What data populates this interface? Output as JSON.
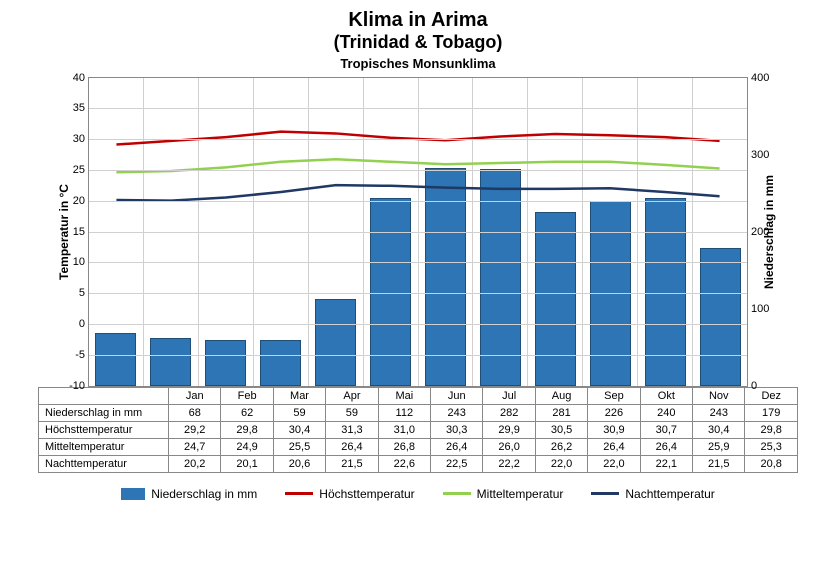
{
  "title": "Klima in Arima",
  "subtitle": "(Trinidad & Tobago)",
  "subsub": "Tropisches Monsunklima",
  "y_left_label": "Temperatur in °C",
  "y_right_label": "Niederschlag in mm",
  "months": [
    "Jan",
    "Feb",
    "Mar",
    "Apr",
    "Mai",
    "Jun",
    "Jul",
    "Aug",
    "Sep",
    "Okt",
    "Nov",
    "Dez"
  ],
  "y_left": {
    "min": -10,
    "max": 40,
    "step": 5
  },
  "y_right": {
    "min": 0,
    "max": 400,
    "step": 100
  },
  "grid_color": "#d0d0d0",
  "bar_fill": "#2e75b6",
  "bar_border": "#1f4e79",
  "series": {
    "niederschlag": {
      "label": "Niederschlag in mm",
      "axis": "right",
      "type": "bar",
      "color": "#2e75b6",
      "values": [
        68,
        62,
        59,
        59,
        112,
        243,
        282,
        281,
        226,
        240,
        243,
        179
      ]
    },
    "hoechst": {
      "label": "Höchsttemperatur",
      "axis": "left",
      "type": "line",
      "color": "#c00000",
      "values": [
        29.2,
        29.8,
        30.4,
        31.3,
        31.0,
        30.3,
        29.9,
        30.5,
        30.9,
        30.7,
        30.4,
        29.8
      ]
    },
    "mittel": {
      "label": "Mitteltemperatur",
      "axis": "left",
      "type": "line",
      "color": "#92d050",
      "values": [
        24.7,
        24.9,
        25.5,
        26.4,
        26.8,
        26.4,
        26.0,
        26.2,
        26.4,
        26.4,
        25.9,
        25.3
      ]
    },
    "nacht": {
      "label": "Nachttemperatur",
      "axis": "left",
      "type": "line",
      "color": "#1f3864",
      "values": [
        20.2,
        20.1,
        20.6,
        21.5,
        22.6,
        22.5,
        22.2,
        22.0,
        22.0,
        22.1,
        21.5,
        20.8
      ]
    }
  },
  "table_rows": [
    {
      "label": "Niederschlag in mm",
      "key": "niederschlag",
      "decimals": 0
    },
    {
      "label": "Höchsttemperatur",
      "key": "hoechst",
      "decimals": 1
    },
    {
      "label": "Mitteltemperatur",
      "key": "mittel",
      "decimals": 1
    },
    {
      "label": "Nachttemperatur",
      "key": "nacht",
      "decimals": 1
    }
  ],
  "legend": [
    {
      "key": "niederschlag",
      "type": "bar"
    },
    {
      "key": "hoechst",
      "type": "line"
    },
    {
      "key": "mittel",
      "type": "line"
    },
    {
      "key": "nacht",
      "type": "line"
    }
  ]
}
